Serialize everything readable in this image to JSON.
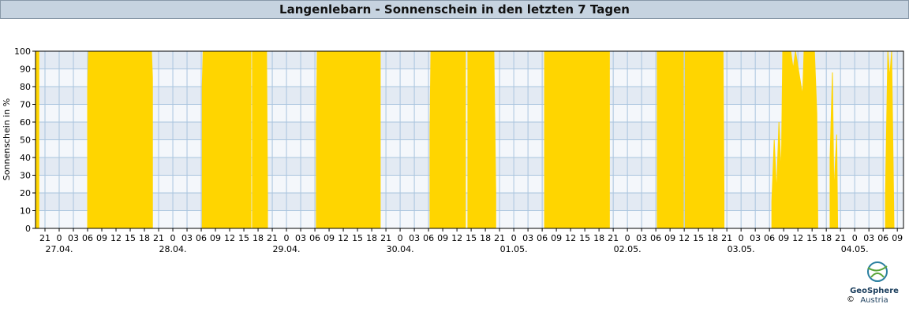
{
  "chart_data": {
    "type": "area",
    "title": "Langenlebarn - Sonnenschein in den letzten 7 Tagen",
    "y_label": "Sonnenschein in %",
    "color": "#ffd500",
    "grid": true,
    "xlim": [
      -5,
      178.3
    ],
    "ylim": [
      0,
      100
    ],
    "yticks": [
      0,
      10,
      20,
      30,
      40,
      50,
      60,
      70,
      80,
      90,
      100
    ],
    "xticks": [
      {
        "value": -3,
        "label": "21"
      },
      0,
      {
        "value": 3,
        "label": "03"
      },
      {
        "value": 6,
        "label": "06"
      },
      {
        "value": 9,
        "label": "09"
      },
      {
        "value": 12,
        "label": "12"
      },
      {
        "value": 15,
        "label": "15"
      },
      {
        "value": 18,
        "label": "18"
      },
      {
        "value": 21,
        "label": "21"
      },
      {
        "value": 24,
        "label": "0"
      },
      {
        "value": 27,
        "label": "03"
      },
      {
        "value": 30,
        "label": "06"
      },
      {
        "value": 33,
        "label": "09"
      },
      {
        "value": 36,
        "label": "12"
      },
      {
        "value": 39,
        "label": "15"
      },
      {
        "value": 42,
        "label": "18"
      },
      {
        "value": 45,
        "label": "21"
      },
      {
        "value": 48,
        "label": "0"
      },
      {
        "value": 51,
        "label": "03"
      },
      {
        "value": 54,
        "label": "06"
      },
      {
        "value": 57,
        "label": "09"
      },
      {
        "value": 60,
        "label": "12"
      },
      {
        "value": 63,
        "label": "15"
      },
      {
        "value": 66,
        "label": "18"
      },
      {
        "value": 69,
        "label": "21"
      },
      {
        "value": 72,
        "label": "0"
      },
      {
        "value": 75,
        "label": "03"
      },
      {
        "value": 78,
        "label": "06"
      },
      {
        "value": 81,
        "label": "09"
      },
      {
        "value": 84,
        "label": "12"
      },
      {
        "value": 87,
        "label": "15"
      },
      {
        "value": 90,
        "label": "18"
      },
      {
        "value": 93,
        "label": "21"
      },
      {
        "value": 96,
        "label": "0"
      },
      {
        "value": 99,
        "label": "03"
      },
      {
        "value": 102,
        "label": "06"
      },
      {
        "value": 105,
        "label": "09"
      },
      {
        "value": 108,
        "label": "12"
      },
      {
        "value": 111,
        "label": "15"
      },
      {
        "value": 114,
        "label": "18"
      },
      {
        "value": 117,
        "label": "21"
      },
      {
        "value": 120,
        "label": "0"
      },
      {
        "value": 123,
        "label": "03"
      },
      {
        "value": 126,
        "label": "06"
      },
      {
        "value": 129,
        "label": "09"
      },
      {
        "value": 132,
        "label": "12"
      },
      {
        "value": 135,
        "label": "15"
      },
      {
        "value": 138,
        "label": "18"
      },
      {
        "value": 141,
        "label": "21"
      },
      {
        "value": 144,
        "label": "0"
      },
      {
        "value": 147,
        "label": "03"
      },
      {
        "value": 150,
        "label": "06"
      },
      {
        "value": 153,
        "label": "09"
      },
      {
        "value": 156,
        "label": "12"
      },
      {
        "value": 159,
        "label": "15"
      },
      {
        "value": 162,
        "label": "18"
      },
      {
        "value": 165,
        "label": "21"
      },
      {
        "value": 168,
        "label": "0"
      },
      {
        "value": 171,
        "label": "03"
      },
      {
        "value": 174,
        "label": "06"
      },
      {
        "value": 177,
        "label": "09"
      }
    ],
    "date_labels": [
      {
        "value": 0,
        "label": "27.04."
      },
      {
        "value": 24,
        "label": "28.04."
      },
      {
        "value": 48,
        "label": "29.04."
      },
      {
        "value": 72,
        "label": "30.04."
      },
      {
        "value": 96,
        "label": "01.05."
      },
      {
        "value": 120,
        "label": "02.05."
      },
      {
        "value": 144,
        "label": "03.05."
      },
      {
        "value": 168,
        "label": "04.05."
      }
    ],
    "x": [
      -5,
      -4.3,
      -4,
      6,
      6.2,
      19.5,
      19.7,
      20,
      30.2,
      30.4,
      40.5,
      40.6,
      40.8,
      43.8,
      44,
      45,
      54.3,
      54.5,
      67.8,
      68,
      78.3,
      78.5,
      85.8,
      86,
      86.3,
      91.8,
      92.2,
      93,
      102.5,
      116.2,
      117,
      126.3,
      131.8,
      132,
      132.2,
      140.2,
      140.4,
      141,
      150.5,
      151,
      151.5,
      152,
      152.5,
      152.8,
      154.5,
      155,
      155.5,
      157,
      157.3,
      159.5,
      160,
      160.2,
      161,
      162.8,
      163.3,
      163.6,
      164.2,
      164.4,
      170,
      174.5,
      175,
      175.4,
      175.8,
      176.1,
      176.3
    ],
    "values": [
      100,
      100,
      null,
      80,
      100,
      100,
      85,
      null,
      80,
      100,
      100,
      null,
      100,
      100,
      20,
      null,
      60,
      100,
      100,
      null,
      55,
      100,
      100,
      null,
      100,
      100,
      20,
      null,
      100,
      100,
      null,
      100,
      100,
      null,
      100,
      100,
      20,
      null,
      15,
      50,
      20,
      60,
      30,
      100,
      100,
      90,
      100,
      75,
      100,
      100,
      65,
      5,
      null,
      40,
      88,
      20,
      53,
      0,
      null,
      20,
      100,
      85,
      100,
      40,
      0
    ]
  },
  "logo": {
    "name": "GeoSphere",
    "sub": "Austria",
    "copyright": "©"
  }
}
